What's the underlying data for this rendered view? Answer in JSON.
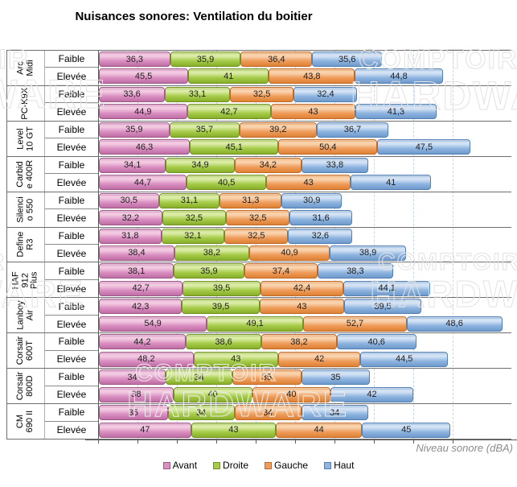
{
  "title": "Nuisances sonores: Ventilation du boitier",
  "watermark": {
    "line1": "COMPTOIR",
    "line2": "HARDWARE"
  },
  "chart_data": {
    "type": "bar",
    "orientation": "horizontal",
    "stacked": true,
    "title": "Nuisances sonores: Ventilation du boitier",
    "xlabel": "Niveau sonore (dBA)",
    "ylabel": "",
    "x_axis": {
      "min": 0,
      "max": 210,
      "grid_step": 20,
      "grid_style": "dashed",
      "tick_labels_visible": false
    },
    "legend_position": "bottom",
    "decimal_separator": ",",
    "series": [
      {
        "name": "Avant",
        "fill": "#DB8FC2",
        "light": "#F2C9E1",
        "dark": "#BE6FA4",
        "border": "#A1568A"
      },
      {
        "name": "Droite",
        "fill": "#A6CC49",
        "light": "#D9EBA4",
        "dark": "#88AF2B",
        "border": "#72941F"
      },
      {
        "name": "Gauche",
        "fill": "#EF9D5C",
        "light": "#F9D2AC",
        "dark": "#DD8134",
        "border": "#C16A28"
      },
      {
        "name": "Haut",
        "fill": "#8FB5E0",
        "light": "#D2E2F4",
        "dark": "#6E9ACB",
        "border": "#5380B4"
      }
    ],
    "row_labels": [
      "Faible",
      "Elevée"
    ],
    "groups": [
      {
        "case": "Arc Midi",
        "case_lines": "Arc\nMidi",
        "rows": [
          {
            "label": "Faible",
            "values": [
              36.3,
              35.9,
              36.4,
              35.6
            ]
          },
          {
            "label": "Elevée",
            "values": [
              45.5,
              41,
              43.8,
              44.8
            ]
          }
        ]
      },
      {
        "case": "PC-K9X",
        "case_lines": "PC-K9X",
        "rows": [
          {
            "label": "Faible",
            "values": [
              33.6,
              33.1,
              32.5,
              32.4
            ]
          },
          {
            "label": "Elevée",
            "values": [
              44.9,
              42.7,
              43,
              41.3
            ]
          }
        ]
      },
      {
        "case": "Level 10 GT",
        "case_lines": "Level\n10 GT",
        "rows": [
          {
            "label": "Faible",
            "values": [
              35.9,
              35.7,
              39.2,
              36.7
            ]
          },
          {
            "label": "Elevée",
            "values": [
              46.3,
              45.1,
              50.4,
              47.5
            ]
          }
        ]
      },
      {
        "case": "Carbide 400R",
        "case_lines": "Carbid\ne 400R",
        "rows": [
          {
            "label": "Faible",
            "values": [
              34.1,
              34.9,
              34.2,
              33.8
            ]
          },
          {
            "label": "Elevée",
            "values": [
              44.7,
              40.5,
              43,
              41
            ]
          }
        ]
      },
      {
        "case": "Silencio 550",
        "case_lines": "Silenci\no 550",
        "rows": [
          {
            "label": "Faible",
            "values": [
              30.5,
              31.1,
              31.3,
              30.9
            ]
          },
          {
            "label": "Elevée",
            "values": [
              32.2,
              32.5,
              32.5,
              31.6
            ]
          }
        ]
      },
      {
        "case": "Define R3",
        "case_lines": "Define\nR3",
        "rows": [
          {
            "label": "Faible",
            "values": [
              31.8,
              32.1,
              32.5,
              32.6
            ]
          },
          {
            "label": "Elevée",
            "values": [
              38.4,
              38.2,
              40.9,
              38.9
            ]
          }
        ]
      },
      {
        "case": "HAF 912 Plus",
        "case_lines": "HAF\n912\nPlus",
        "rows": [
          {
            "label": "Faible",
            "values": [
              38.1,
              35.9,
              37.4,
              38.3
            ]
          },
          {
            "label": "Elevée",
            "values": [
              42.7,
              39.5,
              42.4,
              44.1
            ]
          }
        ]
      },
      {
        "case": "Lanboy Air",
        "case_lines": "Lanboy\nAir",
        "rows": [
          {
            "label": "Faible",
            "values": [
              42.3,
              39.5,
              43,
              39.5
            ]
          },
          {
            "label": "Elevée",
            "values": [
              54.9,
              49.1,
              52.7,
              48.6
            ]
          }
        ]
      },
      {
        "case": "Corsair 600T",
        "case_lines": "Corsair\n600T",
        "rows": [
          {
            "label": "Faible",
            "values": [
              44.2,
              38.6,
              38.2,
              40.6
            ]
          },
          {
            "label": "Elevée",
            "values": [
              48.2,
              43,
              42,
              44.5
            ]
          }
        ]
      },
      {
        "case": "Corsair 800D",
        "case_lines": "Corsair\n800D",
        "rows": [
          {
            "label": "Faible",
            "values": [
              34,
              34,
              35,
              35
            ]
          },
          {
            "label": "Elevée",
            "values": [
              38,
              40,
              40,
              42
            ]
          }
        ]
      },
      {
        "case": "CM 690 II",
        "case_lines": "CM\n690 II",
        "rows": [
          {
            "label": "Faible",
            "values": [
              35,
              34,
              34,
              34
            ]
          },
          {
            "label": "Elevée",
            "values": [
              47,
              43,
              44,
              45
            ]
          }
        ]
      }
    ]
  }
}
